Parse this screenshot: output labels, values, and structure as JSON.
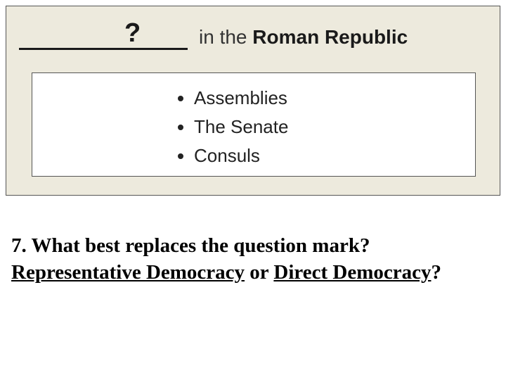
{
  "panel": {
    "background_color": "#edeadd",
    "border_color": "#555555",
    "header": {
      "blank_line_width": 240,
      "question_mark": "?",
      "question_mark_fontsize": 38,
      "text_prefix": "in the ",
      "text_bold": "Roman Republic",
      "fontsize": 28,
      "text_color": "#333333",
      "bold_color": "#1a1a1a"
    },
    "list_box": {
      "background_color": "#ffffff",
      "border_color": "#555555",
      "items": [
        "Assemblies",
        "The Senate",
        "Consuls"
      ],
      "fontsize": 26,
      "text_color": "#222222"
    }
  },
  "question": {
    "number": "7.",
    "line1": "What best replaces the question mark?",
    "option1": "Representative Democracy",
    "conjunction": " or ",
    "option2": "Direct Democracy",
    "tail": "?",
    "fontsize": 29,
    "font_family": "Times New Roman",
    "color": "#000000"
  }
}
